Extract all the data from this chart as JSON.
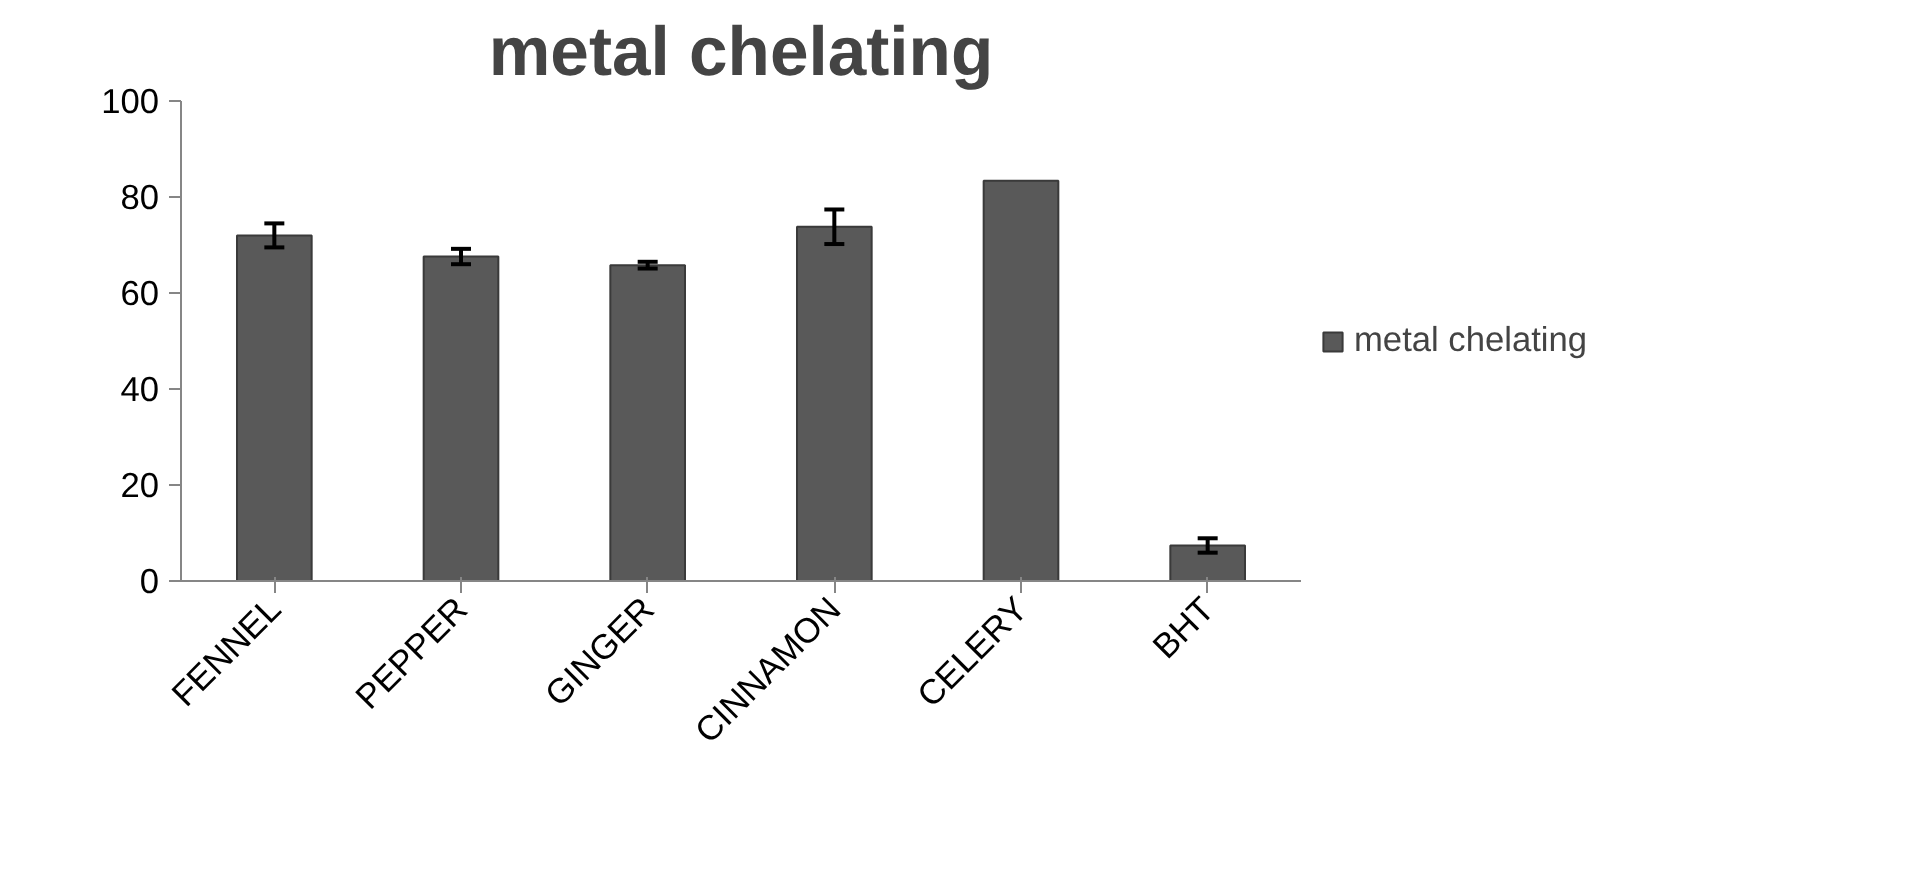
{
  "chart_data": {
    "type": "bar",
    "title": "metal chelating",
    "categories": [
      "FENNEL",
      "PEPPER",
      "GINGER",
      "CINNAMON",
      "CELERY",
      "BHT"
    ],
    "series": [
      {
        "name": "metal chelating",
        "color": "#595959",
        "values": [
          72,
          67.6,
          65.8,
          73.8,
          83.4,
          7.4
        ],
        "errors": [
          2.5,
          1.6,
          0.7,
          3.6,
          null,
          1.5
        ]
      }
    ],
    "ylim": [
      0,
      100
    ],
    "yticks": [
      0,
      20,
      40,
      60,
      80,
      100
    ],
    "grid": false,
    "legend": "right"
  }
}
